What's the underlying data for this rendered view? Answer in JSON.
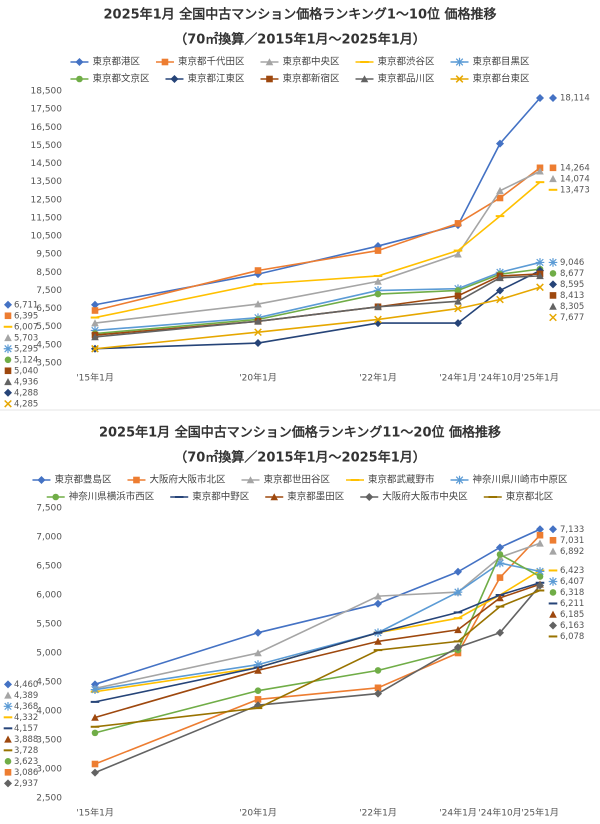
{
  "chart_data": [
    {
      "type": "line",
      "title": "2025年1月 全国中古マンション価格ランキング1～10位 価格推移",
      "subtitle": "（70㎡換算／2015年1月～2025年1月）",
      "categories": [
        "'15年1月",
        "'20年1月",
        "'22年1月",
        "'24年1月",
        "'24年10月",
        "'25年1月"
      ],
      "ylim": [
        3500,
        18500
      ],
      "yticks": [
        {
          "value": 3500,
          "label": "3,500"
        },
        {
          "value": 4500,
          "label": "4,500"
        },
        {
          "value": 5500,
          "label": "5,500"
        },
        {
          "value": 6500,
          "label": "6,500"
        },
        {
          "value": 7500,
          "label": "7,500"
        },
        {
          "value": 8500,
          "label": "8,500"
        },
        {
          "value": 9500,
          "label": "9,500"
        },
        {
          "value": 10500,
          "label": "10,500"
        },
        {
          "value": 11500,
          "label": "11,500"
        },
        {
          "value": 12500,
          "label": "12,500"
        },
        {
          "value": 13500,
          "label": "13,500"
        },
        {
          "value": 14500,
          "label": "14,500"
        },
        {
          "value": 15500,
          "label": "15,500"
        },
        {
          "value": 16500,
          "label": "16,500"
        },
        {
          "value": 17500,
          "label": "17,500"
        },
        {
          "value": 18500,
          "label": "18,500"
        }
      ],
      "grid": false,
      "legend": "top",
      "series": [
        {
          "name": "東京都港区",
          "color": "#4472c4",
          "marker": "diamond",
          "values": [
            6711,
            8400,
            9950,
            11100,
            15600,
            18114
          ],
          "value_labels": [
            "6,711",
            null,
            null,
            null,
            null,
            "18,114"
          ]
        },
        {
          "name": "東京都千代田区",
          "color": "#ed7d31",
          "marker": "square",
          "values": [
            6395,
            8600,
            9700,
            11200,
            12600,
            14264
          ],
          "value_labels": [
            "6,395",
            null,
            null,
            null,
            null,
            "14,264"
          ]
        },
        {
          "name": "東京都中央区",
          "color": "#a5a5a5",
          "marker": "triangle",
          "values": [
            5703,
            6750,
            8000,
            9500,
            13000,
            14074
          ],
          "value_labels": [
            "5,703",
            null,
            null,
            null,
            null,
            "14,074"
          ]
        },
        {
          "name": "東京都渋谷区",
          "color": "#ffc000",
          "marker": "line",
          "values": [
            6007,
            7850,
            8300,
            9700,
            11600,
            13473
          ],
          "value_labels": [
            "6,007",
            null,
            null,
            null,
            null,
            "13,473"
          ]
        },
        {
          "name": "東京都目黒区",
          "color": "#5b9bd5",
          "marker": "star",
          "values": [
            5295,
            6000,
            7500,
            7600,
            8500,
            9046
          ],
          "value_labels": [
            "5,295",
            null,
            null,
            null,
            null,
            "9,046"
          ]
        },
        {
          "name": "東京都文京区",
          "color": "#70ad47",
          "marker": "circle",
          "values": [
            5124,
            5900,
            7300,
            7500,
            8400,
            8677
          ],
          "value_labels": [
            "5,124",
            null,
            null,
            null,
            null,
            "8,677"
          ]
        },
        {
          "name": "東京都江東区",
          "color": "#264478",
          "marker": "diamond",
          "values": [
            4288,
            4600,
            5700,
            5700,
            7500,
            8595
          ],
          "value_labels": [
            "4,288",
            null,
            null,
            null,
            null,
            "8,595"
          ]
        },
        {
          "name": "東京都新宿区",
          "color": "#9e480e",
          "marker": "square",
          "values": [
            5040,
            5800,
            6600,
            7200,
            8300,
            8413
          ],
          "value_labels": [
            "5,040",
            null,
            null,
            null,
            null,
            "8,413"
          ]
        },
        {
          "name": "東京都品川区",
          "color": "#636363",
          "marker": "triangle",
          "values": [
            4936,
            5800,
            6600,
            6900,
            8200,
            8305
          ],
          "value_labels": [
            "4,936",
            null,
            null,
            null,
            null,
            "8,305"
          ]
        },
        {
          "name": "東京都台東区",
          "color": "#e6a700",
          "marker": "x",
          "values": [
            4285,
            5200,
            5900,
            6500,
            7000,
            7677
          ],
          "value_labels": [
            "4,285",
            null,
            null,
            null,
            null,
            "7,677"
          ]
        }
      ]
    },
    {
      "type": "line",
      "title": "2025年1月 全国中古マンション価格ランキング11～20位 価格推移",
      "subtitle": "（70㎡換算／2015年1月～2025年1月）",
      "categories": [
        "'15年1月",
        "'20年1月",
        "'22年1月",
        "'24年1月",
        "'24年10月",
        "'25年1月"
      ],
      "ylim": [
        2500,
        7500
      ],
      "yticks": [
        {
          "value": 2500,
          "label": "2,500"
        },
        {
          "value": 3000,
          "label": "3,000"
        },
        {
          "value": 3500,
          "label": "3,500"
        },
        {
          "value": 4000,
          "label": "4,000"
        },
        {
          "value": 4500,
          "label": "4,500"
        },
        {
          "value": 5000,
          "label": "5,000"
        },
        {
          "value": 5500,
          "label": "5,500"
        },
        {
          "value": 6000,
          "label": "6,000"
        },
        {
          "value": 6500,
          "label": "6,500"
        },
        {
          "value": 7000,
          "label": "7,000"
        },
        {
          "value": 7500,
          "label": "7,500"
        }
      ],
      "grid": false,
      "legend": "top",
      "series": [
        {
          "name": "東京都豊島区",
          "color": "#4472c4",
          "marker": "diamond",
          "values": [
            4460,
            5350,
            5850,
            6400,
            6820,
            7133
          ],
          "value_labels": [
            "4,460",
            null,
            null,
            null,
            null,
            "7,133"
          ]
        },
        {
          "name": "大阪府大阪市北区",
          "color": "#ed7d31",
          "marker": "square",
          "values": [
            3086,
            4200,
            4400,
            5000,
            6300,
            7031
          ],
          "value_labels": [
            "3,086",
            null,
            null,
            null,
            null,
            "7,031"
          ]
        },
        {
          "name": "東京都世田谷区",
          "color": "#a5a5a5",
          "marker": "triangle",
          "values": [
            4389,
            5000,
            5980,
            6050,
            6650,
            6892
          ],
          "value_labels": [
            "4,389",
            null,
            null,
            null,
            null,
            "6,892"
          ]
        },
        {
          "name": "東京都武蔵野市",
          "color": "#ffc000",
          "marker": "line",
          "values": [
            4332,
            4750,
            5350,
            5600,
            6000,
            6423
          ],
          "value_labels": [
            "4,332",
            null,
            null,
            null,
            null,
            "6,423"
          ]
        },
        {
          "name": "神奈川県川崎市中原区",
          "color": "#5b9bd5",
          "marker": "star",
          "values": [
            4368,
            4800,
            5350,
            6050,
            6550,
            6407
          ],
          "value_labels": [
            "4,368",
            null,
            null,
            null,
            null,
            "6,407"
          ]
        },
        {
          "name": "神奈川県横浜市西区",
          "color": "#70ad47",
          "marker": "circle",
          "values": [
            3623,
            4350,
            4700,
            5050,
            6700,
            6318
          ],
          "value_labels": [
            "3,623",
            null,
            null,
            null,
            null,
            "6,318"
          ]
        },
        {
          "name": "東京都中野区",
          "color": "#264478",
          "marker": "line",
          "values": [
            4157,
            4750,
            5350,
            5700,
            6000,
            6211
          ],
          "value_labels": [
            "4,157",
            null,
            null,
            null,
            null,
            "6,211"
          ]
        },
        {
          "name": "東京都墨田区",
          "color": "#9e480e",
          "marker": "triangle",
          "values": [
            3888,
            4700,
            5200,
            5400,
            5950,
            6185
          ],
          "value_labels": [
            "3,888",
            null,
            null,
            null,
            null,
            "6,185"
          ]
        },
        {
          "name": "大阪府大阪市中央区",
          "color": "#636363",
          "marker": "diamond",
          "values": [
            2937,
            4100,
            4300,
            5100,
            5350,
            6163
          ],
          "value_labels": [
            "2,937",
            null,
            null,
            null,
            null,
            "6,163"
          ]
        },
        {
          "name": "東京都北区",
          "color": "#997300",
          "marker": "line",
          "values": [
            3728,
            4050,
            5050,
            5200,
            5800,
            6078
          ],
          "value_labels": [
            "3,728",
            null,
            null,
            null,
            null,
            "6,078"
          ]
        }
      ]
    }
  ]
}
